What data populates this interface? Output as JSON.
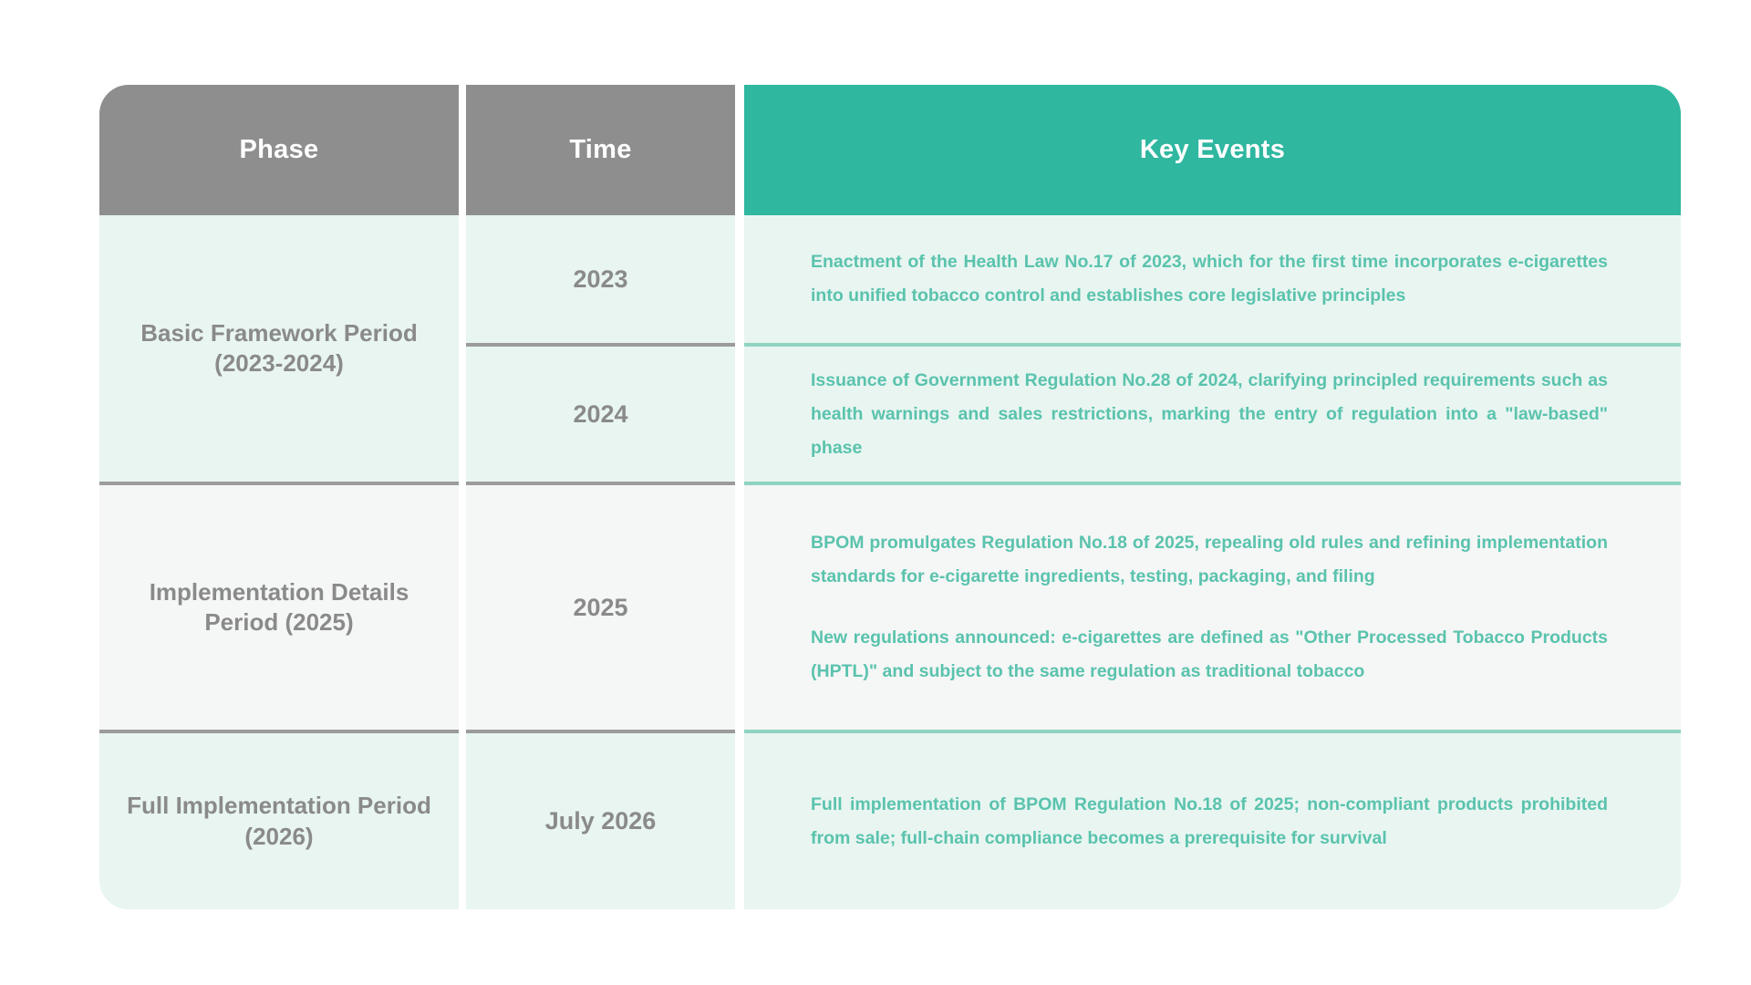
{
  "table": {
    "columns": [
      {
        "key": "phase",
        "label": "Phase"
      },
      {
        "key": "time",
        "label": "Time"
      },
      {
        "key": "events",
        "label": "Key Events"
      }
    ],
    "bands": [
      {
        "phase": "Basic Framework Period (2023-2024)",
        "rows": [
          {
            "time": "2023",
            "events": [
              "Enactment of the Health Law No.17 of 2023, which for the first time incorporates e-cigarettes into unified tobacco control and establishes core legislative principles"
            ]
          },
          {
            "time": "2024",
            "events": [
              "Issuance of Government Regulation No.28 of 2024, clarifying principled requirements such as health warnings and sales restrictions, marking the entry of regulation into a \"law-based\" phase"
            ]
          }
        ]
      },
      {
        "phase": "Implementation Details Period (2025)",
        "rows": [
          {
            "time": "2025",
            "events": [
              "BPOM promulgates Regulation No.18 of 2025, repealing old rules and refining implementation standards for e-cigarette ingredients, testing, packaging, and filing",
              "New regulations announced: e-cigarettes are defined as \"Other Processed Tobacco Products (HPTL)\" and subject to the same regulation as traditional tobacco"
            ]
          }
        ]
      },
      {
        "phase": "Full Implementation Period (2026)",
        "rows": [
          {
            "time": "July 2026",
            "events": [
              "Full implementation of BPOM Regulation No.18 of 2025; non-compliant products prohibited from sale; full-chain compliance becomes a prerequisite for survival"
            ]
          }
        ]
      }
    ]
  },
  "colors": {
    "header_gray": "#8e8e8e",
    "header_teal": "#2fb7a0",
    "band_mint_bg": "#e8f5f1",
    "band_gray_bg": "#f5f6f6",
    "event_text_teal": "#5ac3ad",
    "phase_time_text_gray": "#8a8a8a",
    "divider_gray": "#9b9b9b",
    "divider_teal": "#8fd3c2"
  }
}
